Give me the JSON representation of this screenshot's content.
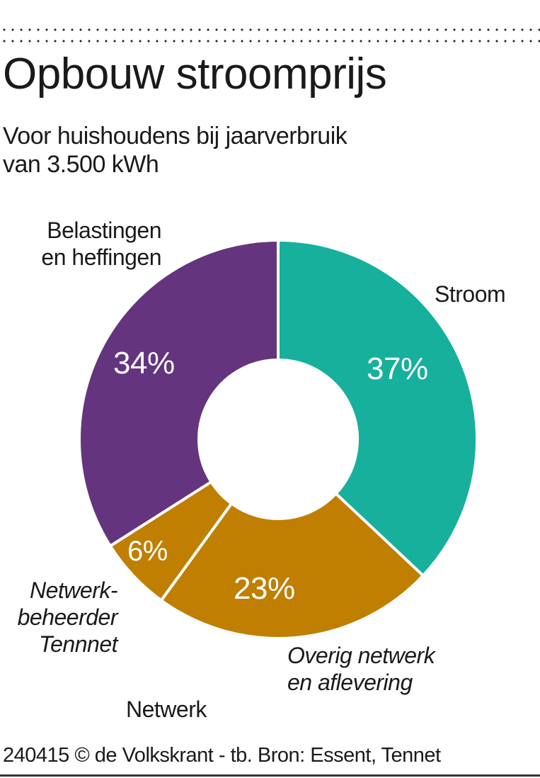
{
  "header": {
    "title": "Opbouw stroomprijs",
    "subtitle_line1": "Voor huishoudens bij jaarverbruik",
    "subtitle_line2": "van 3.500 kWh"
  },
  "labels": {
    "belastingen_line1": "Belastingen",
    "belastingen_line2": "en heffingen",
    "stroom": "Stroom",
    "tennet_line1": "Netwerk-",
    "tennet_line2": "beheerder",
    "tennet_line3": "Tennnet",
    "overig_line1": "Overig netwerk",
    "overig_line2": "en aflevering",
    "netwerk_group": "Netwerk"
  },
  "percent_labels": {
    "stroom": "37%",
    "overig": "23%",
    "tennet": "6%",
    "belastingen": "34%"
  },
  "colors": {
    "stroom": "#16b09d",
    "netwerk": "#c07f00",
    "belastingen": "#64357e"
  },
  "footer": {
    "credit": "240415 © de Volkskrant - tb. Bron: Essent, Tennet"
  },
  "chart_data": {
    "type": "pie",
    "variant": "donut",
    "title": "Opbouw stroomprijs",
    "subtitle": "Voor huishoudens bij jaarverbruik van 3.500 kWh",
    "categories": [
      "Stroom",
      "Overig netwerk en aflevering",
      "Netwerkbeheerder Tennnet",
      "Belastingen en heffingen"
    ],
    "values": [
      37,
      23,
      6,
      34
    ],
    "unit": "%",
    "groups": [
      {
        "name": "Stroom",
        "members": [
          "Stroom"
        ]
      },
      {
        "name": "Netwerk",
        "members": [
          "Overig netwerk en aflevering",
          "Netwerkbeheerder Tennnet"
        ]
      },
      {
        "name": "Belastingen en heffingen",
        "members": [
          "Belastingen en heffingen"
        ]
      }
    ],
    "slice_colors": [
      "#16b09d",
      "#c07f00",
      "#c07f00",
      "#64357e"
    ],
    "start_angle": "12 o'clock, clockwise",
    "legend": "none (direct labels)",
    "source": "Essent, Tennet"
  }
}
